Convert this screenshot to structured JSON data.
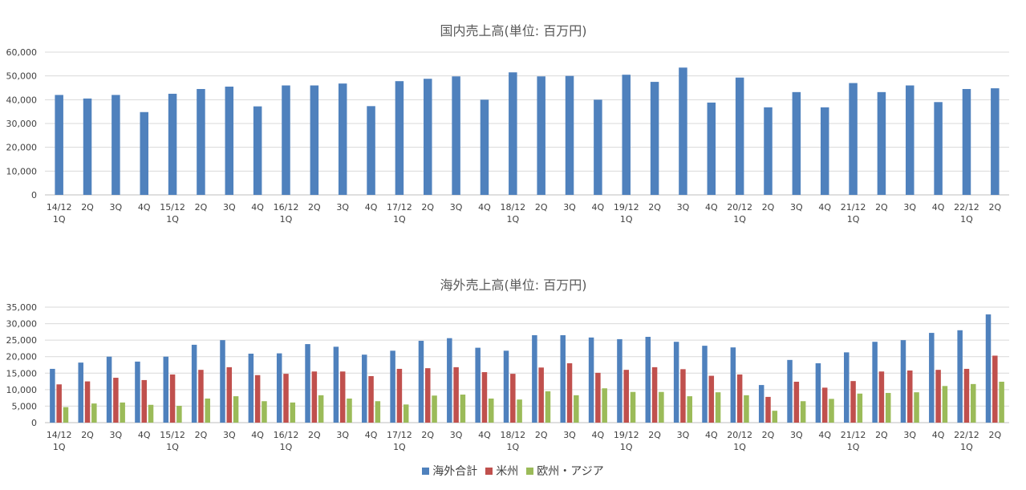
{
  "chart_data": [
    {
      "type": "bar",
      "title": "国内売上高(単位: 百万円)",
      "ylim": [
        0,
        60000
      ],
      "yticks": [
        "0",
        "10,000",
        "20,000",
        "30,000",
        "40,000",
        "50,000",
        "60,000"
      ],
      "categories": [
        [
          "14/12",
          "1Q"
        ],
        [
          "2Q"
        ],
        [
          "3Q"
        ],
        [
          "4Q"
        ],
        [
          "15/12",
          "1Q"
        ],
        [
          "2Q"
        ],
        [
          "3Q"
        ],
        [
          "4Q"
        ],
        [
          "16/12",
          "1Q"
        ],
        [
          "2Q"
        ],
        [
          "3Q"
        ],
        [
          "4Q"
        ],
        [
          "17/12",
          "1Q"
        ],
        [
          "2Q"
        ],
        [
          "3Q"
        ],
        [
          "4Q"
        ],
        [
          "18/12",
          "1Q"
        ],
        [
          "2Q"
        ],
        [
          "3Q"
        ],
        [
          "4Q"
        ],
        [
          "19/12",
          "1Q"
        ],
        [
          "2Q"
        ],
        [
          "3Q"
        ],
        [
          "4Q"
        ],
        [
          "20/12",
          "1Q"
        ],
        [
          "2Q"
        ],
        [
          "3Q"
        ],
        [
          "4Q"
        ],
        [
          "21/12",
          "1Q"
        ],
        [
          "2Q"
        ],
        [
          "3Q"
        ],
        [
          "4Q"
        ],
        [
          "22/12",
          "1Q"
        ],
        [
          "2Q"
        ]
      ],
      "grid": true,
      "series": [
        {
          "color": "#4f81bd",
          "values": [
            42000,
            40500,
            42000,
            34800,
            42500,
            44500,
            45500,
            37200,
            46000,
            46000,
            46800,
            37300,
            47800,
            48800,
            49800,
            40000,
            51500,
            49800,
            50000,
            40000,
            50500,
            47500,
            53500,
            38800,
            49300,
            36800,
            43200,
            36800,
            47000,
            43200,
            46000,
            39000,
            44500,
            44800
          ]
        }
      ]
    },
    {
      "type": "bar",
      "title": "海外売上高(単位: 百万円)",
      "ylim": [
        0,
        35000
      ],
      "yticks": [
        "0",
        "5,000",
        "10,000",
        "15,000",
        "20,000",
        "25,000",
        "30,000",
        "35,000"
      ],
      "categories": [
        [
          "14/12",
          "1Q"
        ],
        [
          "2Q"
        ],
        [
          "3Q"
        ],
        [
          "4Q"
        ],
        [
          "15/12",
          "1Q"
        ],
        [
          "2Q"
        ],
        [
          "3Q"
        ],
        [
          "4Q"
        ],
        [
          "16/12",
          "1Q"
        ],
        [
          "2Q"
        ],
        [
          "3Q"
        ],
        [
          "4Q"
        ],
        [
          "17/12",
          "1Q"
        ],
        [
          "2Q"
        ],
        [
          "3Q"
        ],
        [
          "4Q"
        ],
        [
          "18/12",
          "1Q"
        ],
        [
          "2Q"
        ],
        [
          "3Q"
        ],
        [
          "4Q"
        ],
        [
          "19/12",
          "1Q"
        ],
        [
          "2Q"
        ],
        [
          "3Q"
        ],
        [
          "4Q"
        ],
        [
          "20/12",
          "1Q"
        ],
        [
          "2Q"
        ],
        [
          "3Q"
        ],
        [
          "4Q"
        ],
        [
          "21/12",
          "1Q"
        ],
        [
          "2Q"
        ],
        [
          "3Q"
        ],
        [
          "4Q"
        ],
        [
          "22/12",
          "1Q"
        ],
        [
          "2Q"
        ]
      ],
      "grid": true,
      "legend_position": "bottom",
      "series": [
        {
          "name": "海外合計",
          "color": "#4f81bd",
          "values": [
            16300,
            18200,
            20000,
            18500,
            20000,
            23600,
            25000,
            20900,
            21000,
            23800,
            23000,
            20600,
            21800,
            24800,
            25600,
            22700,
            21800,
            26500,
            26500,
            25800,
            25300,
            26000,
            24500,
            23300,
            22800,
            11400,
            19000,
            18000,
            21300,
            24500,
            25000,
            27200,
            28000,
            32800
          ]
        },
        {
          "name": "米州",
          "color": "#c0504d",
          "values": [
            11600,
            12500,
            13600,
            12900,
            14600,
            16000,
            16800,
            14400,
            14800,
            15500,
            15500,
            14100,
            16300,
            16500,
            16800,
            15300,
            14800,
            16700,
            18000,
            15100,
            16000,
            16800,
            16200,
            14200,
            14600,
            7800,
            12400,
            10600,
            12600,
            15500,
            15800,
            16000,
            16300,
            20300
          ]
        },
        {
          "name": "欧州・アジア",
          "color": "#9bbb59",
          "values": [
            4700,
            5800,
            6100,
            5400,
            5100,
            7300,
            8000,
            6500,
            6100,
            8300,
            7300,
            6500,
            5500,
            8200,
            8500,
            7300,
            7000,
            9500,
            8300,
            10400,
            9300,
            9300,
            8000,
            9200,
            8300,
            3600,
            6500,
            7200,
            8800,
            9000,
            9200,
            11100,
            11700,
            12400
          ]
        }
      ]
    }
  ]
}
